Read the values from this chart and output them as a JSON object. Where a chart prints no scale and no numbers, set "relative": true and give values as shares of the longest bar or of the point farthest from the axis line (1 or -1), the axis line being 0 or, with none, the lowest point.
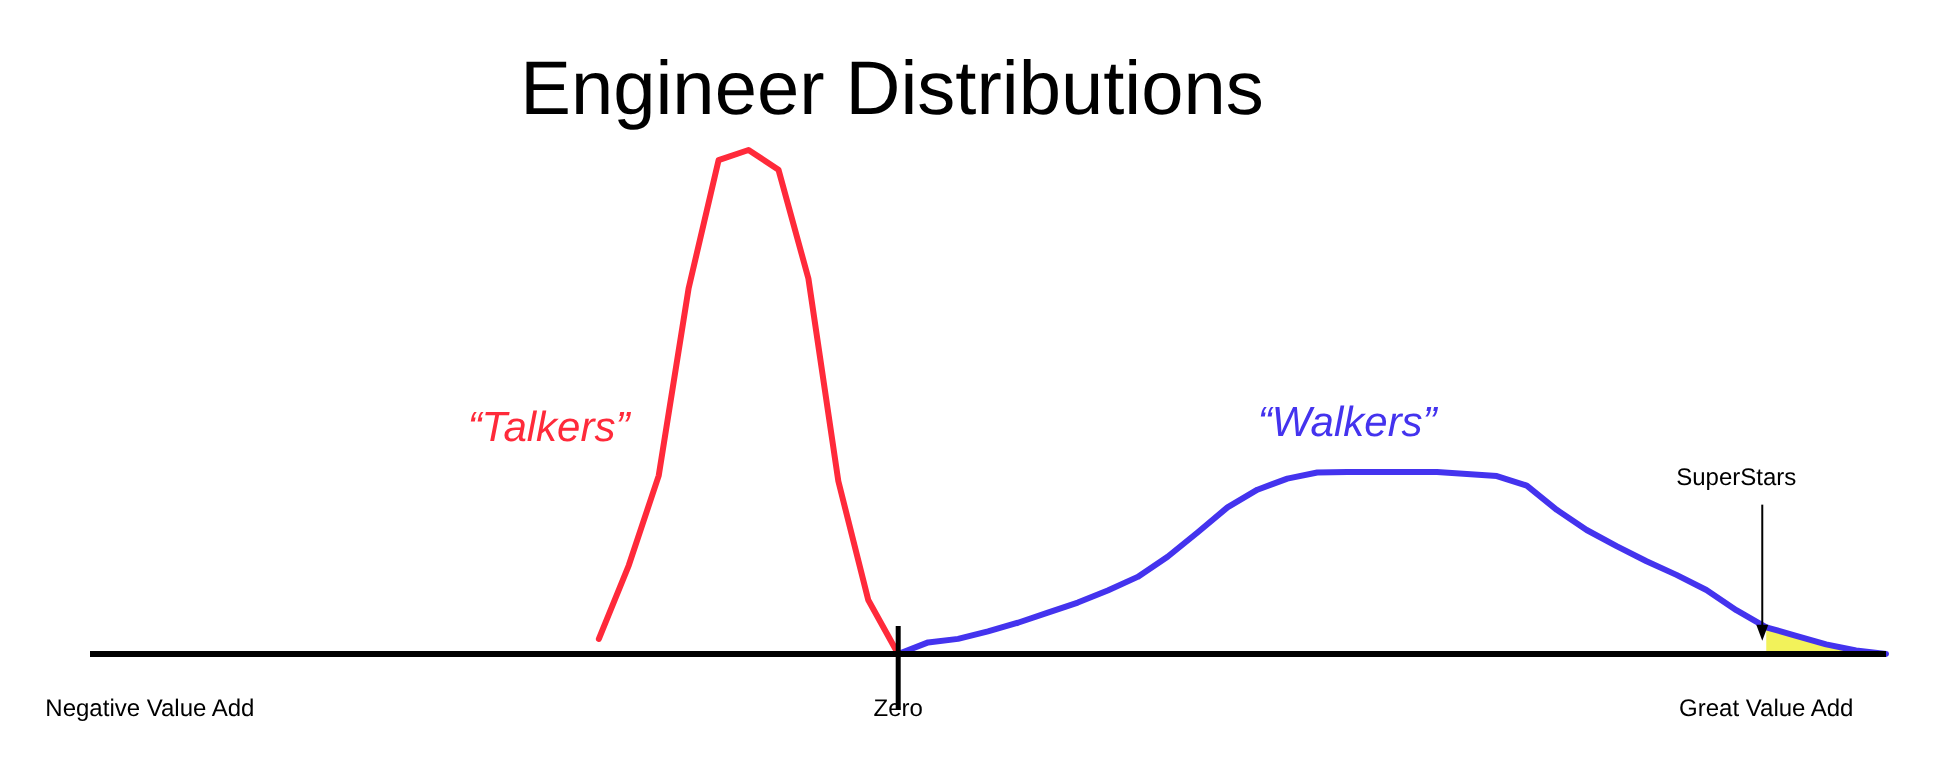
{
  "chart_data": {
    "type": "line",
    "title": "Engineer Distributions",
    "relative": true,
    "categories": [
      null,
      null,
      "Negative Value Add",
      null,
      null,
      null,
      null,
      null,
      null,
      null,
      null,
      null,
      null,
      null,
      null,
      null,
      null,
      null,
      null,
      null,
      null,
      null,
      null,
      null,
      null,
      null,
      null,
      "Zero",
      null,
      null,
      null,
      null,
      null,
      null,
      null,
      null,
      null,
      null,
      null,
      null,
      null,
      null,
      null,
      null,
      null,
      null,
      null,
      null,
      null,
      null,
      null,
      null,
      null,
      null,
      null,
      null,
      "Great Value Add",
      null,
      null,
      null,
      null
    ],
    "series": [
      {
        "type": "area",
        "color": "#f2f25a",
        "values": [
          null,
          null,
          null,
          null,
          null,
          null,
          null,
          null,
          null,
          null,
          null,
          null,
          null,
          null,
          null,
          null,
          null,
          null,
          null,
          null,
          null,
          null,
          null,
          null,
          null,
          null,
          null,
          null,
          null,
          null,
          null,
          null,
          null,
          null,
          null,
          null,
          null,
          null,
          null,
          null,
          null,
          null,
          null,
          null,
          null,
          null,
          null,
          null,
          null,
          null,
          null,
          null,
          null,
          null,
          null,
          null,
          0.053,
          0.036,
          0.019,
          0.007,
          0
        ]
      },
      {
        "name": "“Talkers”",
        "color": "#ff2a3a",
        "values": [
          null,
          null,
          null,
          null,
          null,
          null,
          null,
          null,
          null,
          null,
          null,
          null,
          null,
          null,
          null,
          null,
          null,
          0.03,
          0.176,
          0.354,
          0.726,
          0.98,
          1,
          0.961,
          0.745,
          0.343,
          0.107,
          0,
          null,
          null,
          null,
          null,
          null,
          null,
          null,
          null,
          null,
          null,
          null,
          null,
          null,
          null,
          null,
          null,
          null,
          null,
          null,
          null,
          null,
          null,
          null,
          null,
          null,
          null,
          null,
          null,
          null,
          null,
          null,
          null,
          null
        ]
      },
      {
        "name": "“Walkers”",
        "color": "#4433ee",
        "values": [
          null,
          null,
          null,
          null,
          null,
          null,
          null,
          null,
          null,
          null,
          null,
          null,
          null,
          null,
          null,
          null,
          null,
          null,
          null,
          null,
          null,
          null,
          null,
          null,
          null,
          null,
          null,
          0,
          0.023,
          0.03,
          0.045,
          0.062,
          0.082,
          0.102,
          0.126,
          0.153,
          0.193,
          0.241,
          0.291,
          0.326,
          0.348,
          0.36,
          0.361,
          0.361,
          0.361,
          0.361,
          0.357,
          0.353,
          0.334,
          0.286,
          0.246,
          0.214,
          0.184,
          0.157,
          0.127,
          0.087,
          0.053,
          0.036,
          0.019,
          0.007,
          0
        ]
      }
    ],
    "annotations": [
      "SuperStars"
    ],
    "marker": "none",
    "line_style": "solid"
  }
}
